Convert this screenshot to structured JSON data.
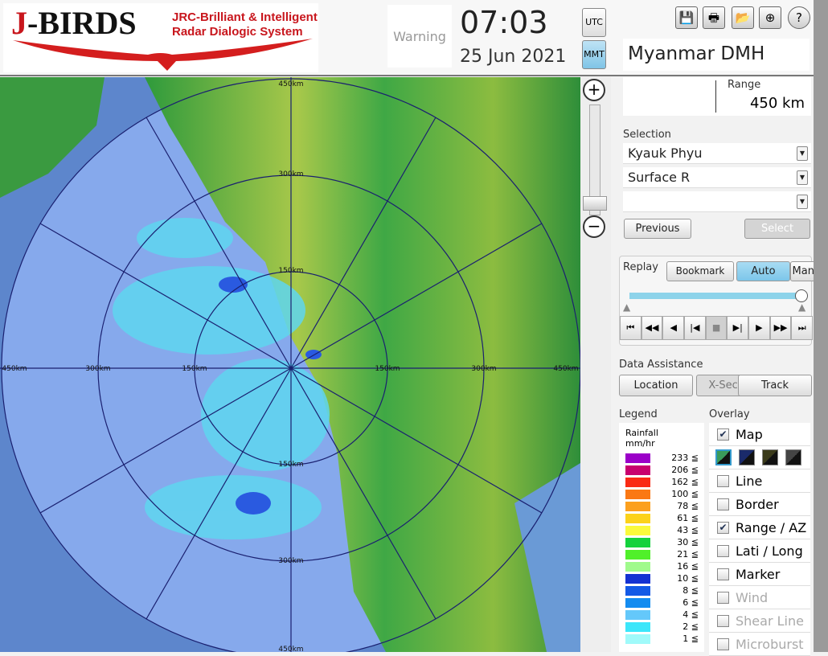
{
  "logo": {
    "brand": "J-BIRDS",
    "tagline1": "JRC-Brilliant & Intelligent",
    "tagline2": "Radar Dialogic System"
  },
  "header": {
    "warning": "Warning",
    "time": "07:03",
    "date": "25 Jun 2021",
    "utc": "UTC",
    "mmt": "MMT",
    "active_tz": "MMT"
  },
  "toolbar": [
    {
      "icon": "save-icon",
      "glyph": "💾"
    },
    {
      "icon": "print-icon",
      "glyph": "🖶"
    },
    {
      "icon": "folder-icon",
      "glyph": "📂"
    },
    {
      "icon": "add-window-icon",
      "glyph": "⊕"
    },
    {
      "icon": "help-icon",
      "glyph": "?"
    }
  ],
  "site": "Myanmar DMH",
  "range": {
    "label": "Range",
    "value": "450 km"
  },
  "selection": {
    "label": "Selection",
    "station": "Kyauk Phyu",
    "product": "Surface R",
    "third": "",
    "previous": "Previous",
    "select": "Select"
  },
  "replay": {
    "label": "Replay",
    "bookmark": "Bookmark",
    "auto": "Auto",
    "manual": "Manual",
    "mode": "Auto",
    "position": 1.0,
    "controls": [
      {
        "icon": "first-icon",
        "glyph": "⏮"
      },
      {
        "icon": "fast-back-icon",
        "glyph": "◀◀"
      },
      {
        "icon": "back-icon",
        "glyph": "◀"
      },
      {
        "icon": "step-back-icon",
        "glyph": "|◀"
      },
      {
        "icon": "stop-icon",
        "glyph": "■"
      },
      {
        "icon": "step-forward-icon",
        "glyph": "▶|"
      },
      {
        "icon": "play-icon",
        "glyph": "▶"
      },
      {
        "icon": "fast-forward-icon",
        "glyph": "▶▶"
      },
      {
        "icon": "last-icon",
        "glyph": "⏭"
      }
    ]
  },
  "data_assistance": {
    "label": "Data Assistance",
    "location": "Location",
    "xsection": "X-Section",
    "track": "Track"
  },
  "legend": {
    "label": "Legend",
    "title1": "Rainfall",
    "title2": "mm/hr",
    "items": [
      {
        "v": "233 ≦",
        "c": "#9b00c8"
      },
      {
        "v": "206 ≦",
        "c": "#c8006e"
      },
      {
        "v": "162 ≦",
        "c": "#fa2a14"
      },
      {
        "v": "100 ≦",
        "c": "#fa7814"
      },
      {
        "v": "78 ≦",
        "c": "#fca01e"
      },
      {
        "v": "61 ≦",
        "c": "#fcd21a"
      },
      {
        "v": "43 ≦",
        "c": "#fafa3c"
      },
      {
        "v": "30 ≦",
        "c": "#14d23c"
      },
      {
        "v": "21 ≦",
        "c": "#50f02a"
      },
      {
        "v": "16 ≦",
        "c": "#a0fa8c"
      },
      {
        "v": "10 ≦",
        "c": "#1432d2"
      },
      {
        "v": "8 ≦",
        "c": "#145ae6"
      },
      {
        "v": "6 ≦",
        "c": "#148cf0"
      },
      {
        "v": "4 ≦",
        "c": "#64c8fa"
      },
      {
        "v": "2 ≦",
        "c": "#3ce6fa"
      },
      {
        "v": "1 ≦",
        "c": "#a0fafa"
      }
    ]
  },
  "overlay": {
    "label": "Overlay",
    "items": [
      {
        "label": "Map",
        "checked": true,
        "enabled": true
      },
      {
        "label": "Line",
        "checked": false,
        "enabled": true
      },
      {
        "label": "Border",
        "checked": false,
        "enabled": true
      },
      {
        "label": "Range / AZ",
        "checked": true,
        "enabled": true
      },
      {
        "label": "Lati / Long",
        "checked": false,
        "enabled": true
      },
      {
        "label": "Marker",
        "checked": false,
        "enabled": true
      },
      {
        "label": "Wind",
        "checked": false,
        "enabled": false
      },
      {
        "label": "Shear Line",
        "checked": false,
        "enabled": false
      },
      {
        "label": "Microburst",
        "checked": false,
        "enabled": false
      }
    ],
    "map_styles": [
      "#3a9a5a",
      "#1a2a6a",
      "#3a3a1a",
      "#444444"
    ]
  },
  "radar": {
    "rings": [
      "150km",
      "300km",
      "450km"
    ]
  }
}
